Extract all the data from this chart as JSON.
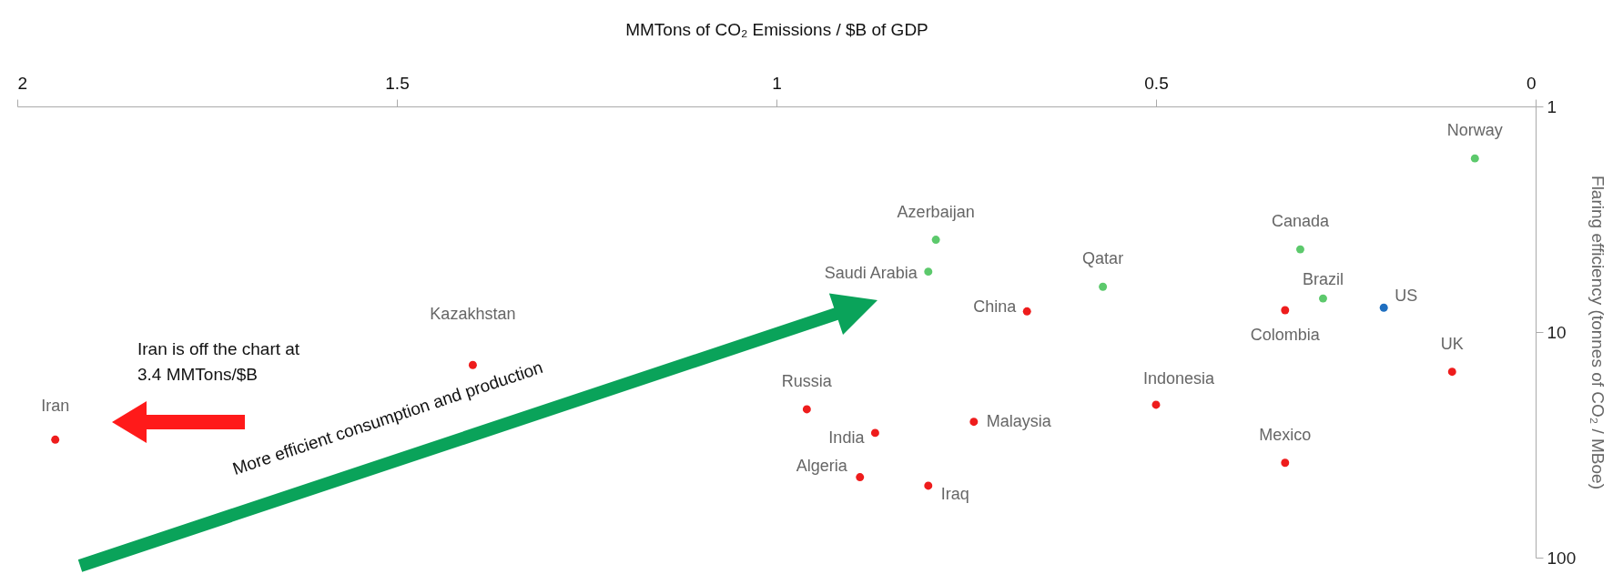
{
  "chart_data": {
    "type": "scatter",
    "xlabel": "MMTons of CO₂ Emissions / $B of GDP",
    "ylabel": "Flaring efficiency (tonnes of CO₂ / MBoe)",
    "xlim": [
      2,
      0
    ],
    "xticks": [
      2,
      1.5,
      1,
      0.5,
      0
    ],
    "ylim": [
      100,
      1
    ],
    "yticks": [
      1,
      10,
      100
    ],
    "log": "y",
    "grid": false,
    "legend": false,
    "marker": "circle",
    "annotations": [
      "Iran is off the chart at 3.4 MMTons/$B",
      "More efficient consumption and production"
    ],
    "series": [
      {
        "name": "Norway",
        "color": "#5cc96c",
        "x": [
          0.08
        ],
        "values": [
          1.7
        ]
      },
      {
        "name": "Azerbaijan",
        "color": "#5cc96c",
        "x": [
          0.79
        ],
        "values": [
          3.9
        ]
      },
      {
        "name": "Saudi Arabia",
        "color": "#5cc96c",
        "x": [
          0.8
        ],
        "values": [
          5.4
        ]
      },
      {
        "name": "Canada",
        "color": "#5cc96c",
        "x": [
          0.31
        ],
        "values": [
          4.3
        ]
      },
      {
        "name": "Qatar",
        "color": "#5cc96c",
        "x": [
          0.57
        ],
        "values": [
          6.3
        ]
      },
      {
        "name": "Brazil",
        "color": "#5cc96c",
        "x": [
          0.28
        ],
        "values": [
          7.1
        ]
      },
      {
        "name": "US",
        "color": "#1f6fc0",
        "x": [
          0.2
        ],
        "values": [
          7.8
        ]
      },
      {
        "name": "China",
        "color": "#ee1c1c",
        "x": [
          0.67
        ],
        "values": [
          8.1
        ]
      },
      {
        "name": "Colombia",
        "color": "#ee1c1c",
        "x": [
          0.33
        ],
        "values": [
          8
        ]
      },
      {
        "name": "Kazakhstan",
        "color": "#ee1c1c",
        "x": [
          1.4
        ],
        "values": [
          14
        ]
      },
      {
        "name": "UK",
        "color": "#ee1c1c",
        "x": [
          0.11
        ],
        "values": [
          15
        ]
      },
      {
        "name": "Russia",
        "color": "#ee1c1c",
        "x": [
          0.96
        ],
        "values": [
          22
        ]
      },
      {
        "name": "Indonesia",
        "color": "#ee1c1c",
        "x": [
          0.5
        ],
        "values": [
          21
        ]
      },
      {
        "name": "Malaysia",
        "color": "#ee1c1c",
        "x": [
          0.74
        ],
        "values": [
          25
        ]
      },
      {
        "name": "India",
        "color": "#ee1c1c",
        "x": [
          0.87
        ],
        "values": [
          28
        ]
      },
      {
        "name": "Iran",
        "color": "#ee1c1c",
        "x": [
          1.95
        ],
        "values": [
          30
        ]
      },
      {
        "name": "Mexico",
        "color": "#ee1c1c",
        "x": [
          0.33
        ],
        "values": [
          38
        ]
      },
      {
        "name": "Algeria",
        "color": "#ee1c1c",
        "x": [
          0.89
        ],
        "values": [
          44
        ]
      },
      {
        "name": "Iraq",
        "color": "#ee1c1c",
        "x": [
          0.8
        ],
        "values": [
          48
        ]
      }
    ]
  }
}
